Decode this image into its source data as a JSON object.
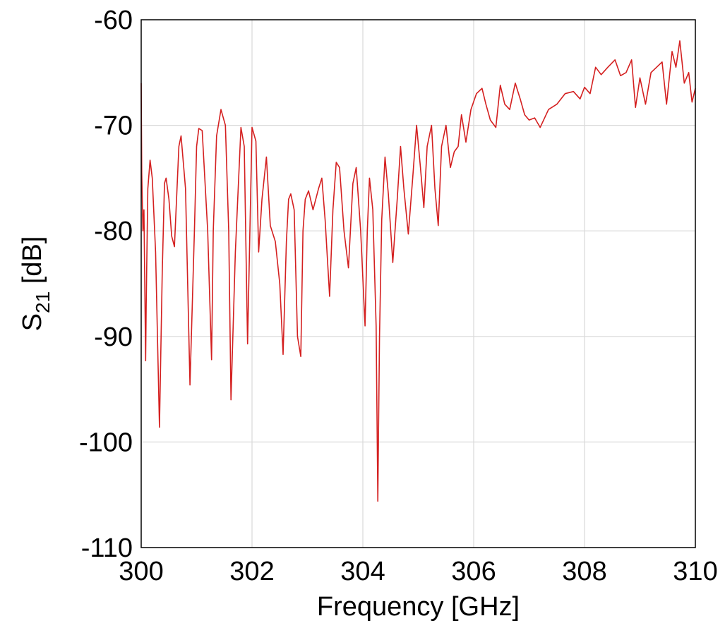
{
  "chart_data": {
    "type": "line",
    "title": "",
    "xlabel": "Frequency [GHz]",
    "ylabel": {
      "main": "S",
      "subscript": "21",
      "unit": " [dB]"
    },
    "xlim": [
      300,
      310
    ],
    "ylim": [
      -110,
      -60
    ],
    "xticks": [
      300,
      302,
      304,
      306,
      308,
      310
    ],
    "yticks": [
      -60,
      -70,
      -80,
      -90,
      -100,
      -110
    ],
    "xtick_labels": [
      "300",
      "302",
      "304",
      "306",
      "308",
      "310"
    ],
    "ytick_labels": [
      "-60",
      "-70",
      "-80",
      "-90",
      "-100",
      "-110"
    ],
    "grid": true,
    "series": [
      {
        "color": "#d42020",
        "x": [
          300.0,
          300.01,
          300.03,
          300.05,
          300.08,
          300.09,
          300.12,
          300.16,
          300.2,
          300.26,
          300.33,
          300.38,
          300.42,
          300.45,
          300.5,
          300.55,
          300.6,
          300.68,
          300.72,
          300.8,
          300.88,
          300.96,
          301.0,
          301.04,
          301.1,
          301.2,
          301.27,
          301.3,
          301.36,
          301.44,
          301.52,
          301.58,
          301.62,
          301.7,
          301.8,
          301.86,
          301.92,
          302.0,
          302.07,
          302.12,
          302.18,
          302.26,
          302.33,
          302.42,
          302.5,
          302.56,
          302.62,
          302.66,
          302.7,
          302.76,
          302.82,
          302.88,
          302.92,
          302.96,
          303.02,
          303.1,
          303.2,
          303.26,
          303.32,
          303.4,
          303.46,
          303.52,
          303.58,
          303.66,
          303.74,
          303.82,
          303.88,
          303.96,
          304.04,
          304.08,
          304.12,
          304.18,
          304.24,
          304.27,
          304.3,
          304.34,
          304.4,
          304.46,
          304.54,
          304.62,
          304.68,
          304.74,
          304.82,
          304.9,
          304.97,
          305.04,
          305.1,
          305.16,
          305.24,
          305.3,
          305.36,
          305.42,
          305.5,
          305.58,
          305.65,
          305.72,
          305.78,
          305.86,
          305.95,
          306.05,
          306.15,
          306.22,
          306.3,
          306.4,
          306.48,
          306.56,
          306.65,
          306.75,
          306.84,
          306.92,
          307.0,
          307.1,
          307.2,
          307.35,
          307.5,
          307.65,
          307.8,
          307.92,
          308.0,
          308.1,
          308.2,
          308.3,
          308.42,
          308.55,
          308.65,
          308.75,
          308.85,
          308.92,
          309.0,
          309.1,
          309.2,
          309.3,
          309.4,
          309.48,
          309.58,
          309.65,
          309.72,
          309.8,
          309.88,
          309.94,
          310.0
        ],
        "values": [
          -66.0,
          -74.5,
          -80.0,
          -78.0,
          -92.3,
          -87.0,
          -76.0,
          -73.3,
          -75.0,
          -82.0,
          -98.6,
          -84.0,
          -75.5,
          -75.0,
          -77.0,
          -80.5,
          -81.5,
          -72.0,
          -71.0,
          -76.0,
          -94.6,
          -80.0,
          -72.0,
          -70.3,
          -70.5,
          -80.0,
          -92.2,
          -80.0,
          -71.0,
          -68.5,
          -70.0,
          -80.0,
          -96.0,
          -82.0,
          -70.2,
          -72.0,
          -90.7,
          -70.2,
          -71.5,
          -82.0,
          -77.0,
          -73.0,
          -79.5,
          -81.0,
          -85.0,
          -91.7,
          -81.0,
          -77.0,
          -76.5,
          -78.0,
          -90.0,
          -91.9,
          -80.0,
          -77.0,
          -76.2,
          -78.0,
          -76.0,
          -75.0,
          -79.0,
          -86.2,
          -78.0,
          -73.5,
          -74.0,
          -80.0,
          -83.5,
          -75.5,
          -74.0,
          -80.0,
          -89.0,
          -80.0,
          -75.0,
          -78.0,
          -89.0,
          -105.6,
          -90.0,
          -79.0,
          -73.0,
          -76.5,
          -83.0,
          -77.0,
          -72.0,
          -76.0,
          -80.3,
          -75.0,
          -70.0,
          -74.0,
          -77.8,
          -72.0,
          -70.0,
          -76.0,
          -79.5,
          -72.0,
          -70.0,
          -74.0,
          -72.5,
          -72.0,
          -69.0,
          -71.6,
          -68.5,
          -67.0,
          -66.5,
          -68.0,
          -69.5,
          -70.2,
          -66.2,
          -68.0,
          -68.5,
          -66.0,
          -67.5,
          -69.0,
          -69.5,
          -69.3,
          -70.2,
          -68.5,
          -68.0,
          -67.0,
          -66.8,
          -67.5,
          -66.4,
          -67.0,
          -64.5,
          -65.2,
          -64.5,
          -63.8,
          -65.3,
          -65.0,
          -63.8,
          -68.3,
          -65.5,
          -68.0,
          -65.0,
          -64.5,
          -64.0,
          -68.0,
          -63.0,
          -64.5,
          -62.0,
          -66.0,
          -65.0,
          -67.8,
          -66.5
        ]
      }
    ]
  }
}
